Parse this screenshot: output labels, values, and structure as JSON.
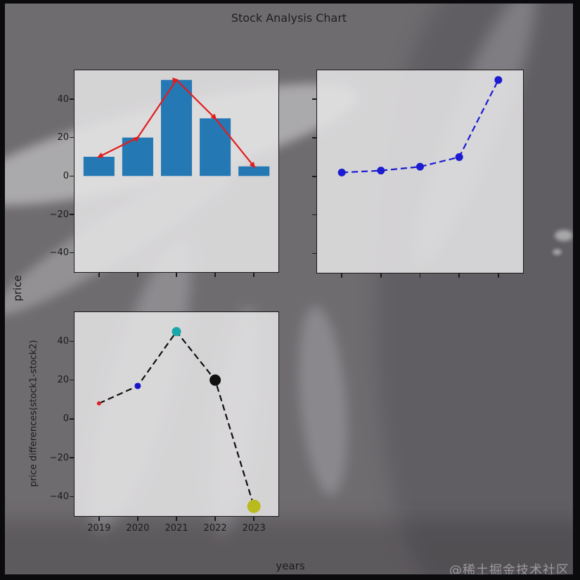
{
  "title": "Stock Analysis Chart",
  "supxlabel": "years",
  "supylabel": "price",
  "watermark": "@稀土掘金技术社区",
  "palette": {
    "figure_bg": "#6f6c70",
    "outer_border": "#0b0b0d",
    "axes_bg": "rgba(229,228,229,0.87)",
    "axes_edge": "#1a1a1a",
    "text_color": "#1c1c1c",
    "bar_color": "#2478b4",
    "red_line": "#e11d1d",
    "blue_line": "#1b1bd1",
    "black_line": "#101010"
  },
  "chart_data": [
    {
      "type": "bar",
      "name": "stock1-bar-with-trend",
      "categories": [
        "2019",
        "2020",
        "2021",
        "2022",
        "2023"
      ],
      "series": [
        {
          "name": "stock1-bars",
          "type": "bar",
          "values": [
            10,
            20,
            50,
            30,
            5
          ],
          "color": "#2478b4"
        },
        {
          "name": "stock1-trend",
          "type": "line",
          "values": [
            10,
            20,
            50,
            30,
            5
          ],
          "color": "#e11d1d",
          "marker": "arrow",
          "linestyle": "solid"
        }
      ],
      "ylim": [
        -50,
        55
      ],
      "yticks": [
        40,
        20,
        0,
        -20,
        -40
      ],
      "show_ytick_labels": true,
      "show_xtick_labels": false,
      "grid": false
    },
    {
      "type": "line",
      "name": "stock2-line",
      "categories": [
        "2019",
        "2020",
        "2021",
        "2022",
        "2023"
      ],
      "series": [
        {
          "name": "stock2",
          "type": "line",
          "values": [
            2,
            3,
            5,
            10,
            50
          ],
          "color": "#1b1bd1",
          "marker": "circle",
          "linestyle": "dashed"
        }
      ],
      "ylim": [
        -50,
        55
      ],
      "yticks": [
        40,
        20,
        0,
        -20,
        -40
      ],
      "show_ytick_labels": false,
      "show_xtick_labels": false,
      "grid": false
    },
    {
      "type": "scatter",
      "name": "price-differences",
      "ylabel": "price differences(stock1-stock2)",
      "categories": [
        "2019",
        "2020",
        "2021",
        "2022",
        "2023"
      ],
      "series": [
        {
          "name": "stock1-minus-stock2",
          "type": "scatter-line",
          "values": [
            8,
            17,
            45,
            20,
            -45
          ],
          "color": "#101010",
          "linestyle": "dashed",
          "point_colors": [
            "#e02020",
            "#1717c8",
            "#18a8a8",
            "#101010",
            "#b9ba1e"
          ],
          "point_radii": [
            3,
            4.5,
            6.5,
            8,
            9.5
          ]
        }
      ],
      "ylim": [
        -50,
        55
      ],
      "yticks": [
        40,
        20,
        0,
        -20,
        -40
      ],
      "show_ytick_labels": true,
      "show_xtick_labels": true,
      "grid": false
    }
  ]
}
